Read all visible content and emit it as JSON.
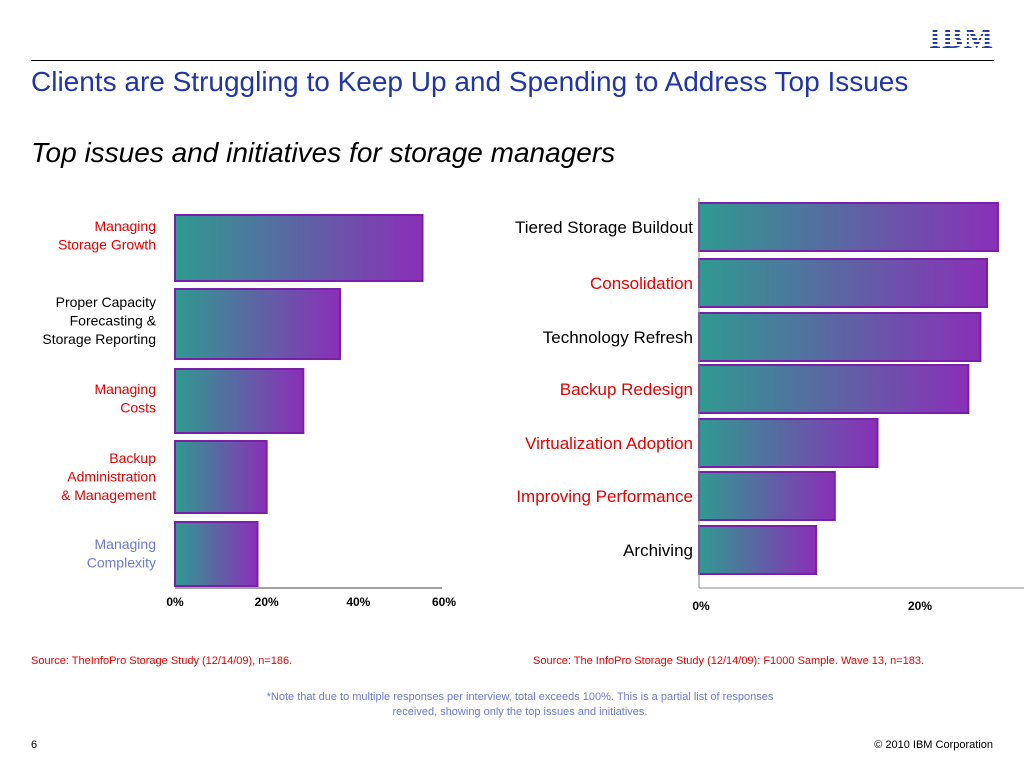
{
  "header": {
    "logo_text": "IBM",
    "title": "Clients are Struggling to Keep Up and Spending to Address Top Issues",
    "subtitle": "Top issues and initiatives for storage managers"
  },
  "colors": {
    "title": "#1f35a8",
    "red_label": "#e60000",
    "blue_label": "#6c7bd0",
    "bar_gradient_start": "#2f9a90",
    "bar_gradient_end": "#8a2fb8",
    "bar_border": "#7a1fa8"
  },
  "chart_data": [
    {
      "type": "bar",
      "orientation": "horizontal",
      "categories": [
        "Managing Storage Growth",
        "Proper Capacity Forecasting & Storage Reporting",
        "Managing Costs",
        "Backup Administration & Management",
        "Managing Complexity"
      ],
      "category_lines": [
        [
          "Managing",
          "Storage Growth"
        ],
        [
          "Proper Capacity",
          "Forecasting &",
          "Storage Reporting"
        ],
        [
          "Managing",
          "Costs"
        ],
        [
          "Backup",
          "Administration",
          "& Management"
        ],
        [
          "Managing",
          "Complexity"
        ]
      ],
      "label_colors": [
        "#e60000",
        "#000000",
        "#e60000",
        "#e60000",
        "#6c7bd0"
      ],
      "values": [
        54,
        36,
        28,
        20,
        18
      ],
      "xlim": [
        0,
        60
      ],
      "ticks": [
        "0%",
        "20%",
        "40%",
        "60%"
      ],
      "grid": false,
      "source": "Source:  TheInfoPro Storage Study (12/14/09), n=186."
    },
    {
      "type": "bar",
      "orientation": "horizontal",
      "categories": [
        "Tiered Storage Buildout",
        "Consolidation",
        "Technology Refresh",
        "Backup Redesign",
        "Virtualization Adoption",
        "Improving Performance",
        "Archiving"
      ],
      "label_colors": [
        "#000000",
        "#e60000",
        "#000000",
        "#e60000",
        "#e60000",
        "#e60000",
        "#000000"
      ],
      "values": [
        27.3,
        26.3,
        25.7,
        24.6,
        16.3,
        12.4,
        10.7
      ],
      "xlim": [
        0,
        30
      ],
      "ticks": [
        "0%",
        "20%"
      ],
      "grid": false,
      "source": "Source:  The InfoPro Storage Study (12/14/09): F1000 Sample.  Wave 13, n=183."
    }
  ],
  "footer": {
    "note": "*Note that due to multiple responses per interview, total exceeds 100%. This is a partial list of responses received, showing only the top issues and initiatives.",
    "page_number": "6",
    "copyright": "© 2010 IBM Corporation"
  }
}
